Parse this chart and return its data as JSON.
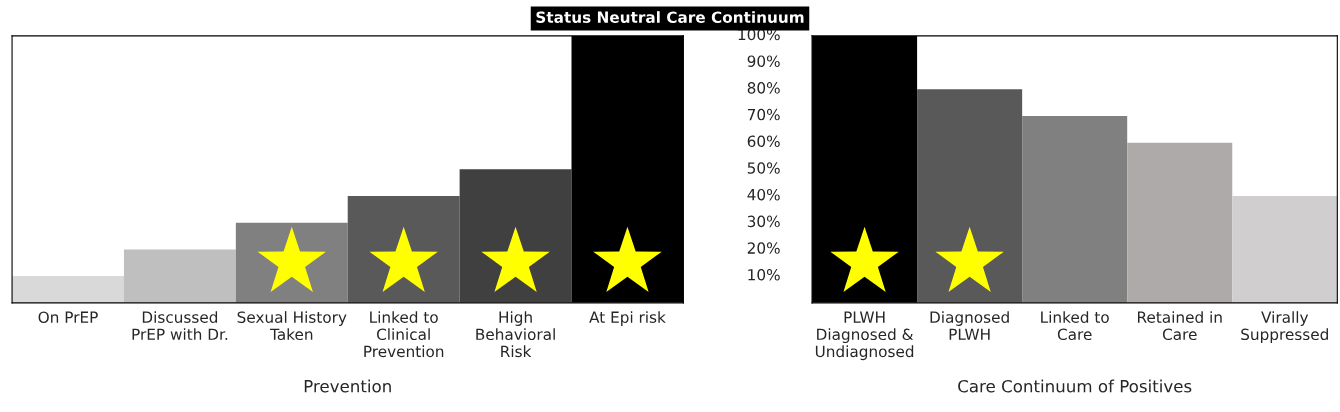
{
  "chart_data": [
    {
      "type": "bar",
      "title": "Status Neutral Care Continuum",
      "xlabel": "Prevention",
      "categories": [
        "On PrEP",
        "Discussed\nPrEP with Dr.",
        "Sexual History\nTaken",
        "Linked to\nClinical\nPrevention",
        "High\nBehavioral\nRisk",
        "At Epi risk"
      ],
      "values": [
        10,
        20,
        30,
        40,
        50,
        100
      ],
      "colors": [
        "#d9d9d9",
        "#bfbfbf",
        "#808080",
        "#595959",
        "#404040",
        "#000000"
      ],
      "ylim": [
        0,
        100
      ],
      "yticks": [
        {
          "value": 10,
          "label": "10%"
        },
        {
          "value": 20,
          "label": "20%"
        },
        {
          "value": 30,
          "label": "30%"
        },
        {
          "value": 40,
          "label": "40%"
        },
        {
          "value": 50,
          "label": "50%"
        },
        {
          "value": 60,
          "label": "60%"
        },
        {
          "value": 70,
          "label": "70%"
        },
        {
          "value": 80,
          "label": "80%"
        },
        {
          "value": 90,
          "label": "90%"
        },
        {
          "value": 100,
          "label": "100%"
        }
      ]
    },
    {
      "type": "bar",
      "xlabel": "Care Continuum of Positives",
      "categories": [
        "PLWH\nDiagnosed &\nUndiagnosed",
        "Diagnosed\nPLWH",
        "Linked to\nCare",
        "Retained in\nCare",
        "Virally\nSuppressed"
      ],
      "values": [
        100,
        80,
        70,
        60,
        40
      ],
      "colors": [
        "#000000",
        "#595959",
        "#808080",
        "#aeaaaa",
        "#d0cece"
      ],
      "ylim": [
        0,
        100
      ],
      "tick_labels": "x"
    }
  ]
}
